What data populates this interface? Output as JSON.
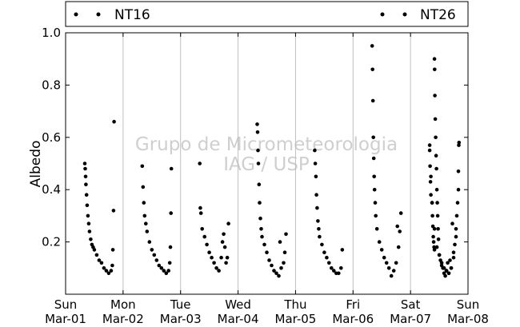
{
  "chart_data": {
    "type": "scatter",
    "ylabel": "Albedo",
    "xlabel": "",
    "ylim": [
      0.0,
      1.0
    ],
    "y_ticks": [
      "0.2",
      "0.4",
      "0.6",
      "0.8",
      "1.0"
    ],
    "x_range": [
      "2015-03-01",
      "2015-03-08"
    ],
    "x_ticks": [
      {
        "date": "2015-03-01",
        "day": "Sun",
        "label": "Mar-01"
      },
      {
        "date": "2015-03-02",
        "day": "Mon",
        "label": "Mar-02"
      },
      {
        "date": "2015-03-03",
        "day": "Tue",
        "label": "Mar-03"
      },
      {
        "date": "2015-03-04",
        "day": "Wed",
        "label": "Mar-04"
      },
      {
        "date": "2015-03-05",
        "day": "Thu",
        "label": "Mar-05"
      },
      {
        "date": "2015-03-06",
        "day": "Fri",
        "label": "Mar-06"
      },
      {
        "date": "2015-03-07",
        "day": "Sat",
        "label": "Mar-07"
      },
      {
        "date": "2015-03-08",
        "day": "Sun",
        "label": "Mar-08"
      }
    ],
    "grid": "vertical",
    "legend_position": "top",
    "watermark": [
      "Grupo de Micrometeorologia",
      "IAG / USP"
    ],
    "series": [
      {
        "name": "NT16",
        "color": "#000000",
        "points": [
          [
            "2015-03-01 08:00",
            0.5
          ],
          [
            "2015-03-01 08:10",
            0.48
          ],
          [
            "2015-03-01 08:20",
            0.45
          ],
          [
            "2015-03-01 08:30",
            0.42
          ],
          [
            "2015-03-01 08:45",
            0.38
          ],
          [
            "2015-03-01 09:00",
            0.34
          ],
          [
            "2015-03-01 09:20",
            0.3
          ],
          [
            "2015-03-01 09:40",
            0.27
          ],
          [
            "2015-03-01 10:00",
            0.24
          ],
          [
            "2015-03-01 10:30",
            0.21
          ],
          [
            "2015-03-01 11:00",
            0.19
          ],
          [
            "2015-03-01 11:30",
            0.18
          ],
          [
            "2015-03-01 12:00",
            0.17
          ],
          [
            "2015-03-01 13:00",
            0.15
          ],
          [
            "2015-03-01 14:00",
            0.13
          ],
          [
            "2015-03-01 15:00",
            0.12
          ],
          [
            "2015-03-01 16:00",
            0.1
          ],
          [
            "2015-03-01 17:00",
            0.09
          ],
          [
            "2015-03-01 18:00",
            0.08
          ],
          [
            "2015-03-01 19:00",
            0.09
          ],
          [
            "2015-03-01 19:30",
            0.11
          ],
          [
            "2015-03-01 19:45",
            0.17
          ],
          [
            "2015-03-01 20:00",
            0.32
          ],
          [
            "2015-03-01 20:15",
            0.66
          ],
          [
            "2015-03-02 08:00",
            0.49
          ],
          [
            "2015-03-02 08:20",
            0.41
          ],
          [
            "2015-03-02 08:40",
            0.35
          ],
          [
            "2015-03-02 09:00",
            0.3
          ],
          [
            "2015-03-02 09:30",
            0.27
          ],
          [
            "2015-03-02 10:00",
            0.24
          ],
          [
            "2015-03-02 11:00",
            0.2
          ],
          [
            "2015-03-02 12:00",
            0.17
          ],
          [
            "2015-03-02 13:00",
            0.15
          ],
          [
            "2015-03-02 14:00",
            0.13
          ],
          [
            "2015-03-02 15:00",
            0.11
          ],
          [
            "2015-03-02 16:00",
            0.1
          ],
          [
            "2015-03-02 17:00",
            0.09
          ],
          [
            "2015-03-02 18:00",
            0.08
          ],
          [
            "2015-03-02 19:00",
            0.09
          ],
          [
            "2015-03-02 19:30",
            0.12
          ],
          [
            "2015-03-02 19:45",
            0.18
          ],
          [
            "2015-03-02 20:00",
            0.31
          ],
          [
            "2015-03-02 20:10",
            0.48
          ],
          [
            "2015-03-03 08:00",
            0.5
          ],
          [
            "2015-03-03 08:15",
            0.33
          ],
          [
            "2015-03-03 08:30",
            0.31
          ],
          [
            "2015-03-03 09:00",
            0.25
          ],
          [
            "2015-03-03 10:00",
            0.22
          ],
          [
            "2015-03-03 11:00",
            0.19
          ],
          [
            "2015-03-03 12:00",
            0.16
          ],
          [
            "2015-03-03 13:00",
            0.14
          ],
          [
            "2015-03-03 14:00",
            0.12
          ],
          [
            "2015-03-03 15:00",
            0.1
          ],
          [
            "2015-03-03 16:00",
            0.09
          ],
          [
            "2015-03-03 17:00",
            0.14
          ],
          [
            "2015-03-03 17:30",
            0.2
          ],
          [
            "2015-03-03 18:00",
            0.23
          ],
          [
            "2015-03-03 18:30",
            0.18
          ],
          [
            "2015-03-03 19:00",
            0.12
          ],
          [
            "2015-03-03 19:30",
            0.14
          ],
          [
            "2015-03-03 20:00",
            0.27
          ],
          [
            "2015-03-04 08:00",
            0.65
          ],
          [
            "2015-03-04 08:10",
            0.62
          ],
          [
            "2015-03-04 08:20",
            0.55
          ],
          [
            "2015-03-04 08:30",
            0.5
          ],
          [
            "2015-03-04 08:45",
            0.42
          ],
          [
            "2015-03-04 09:00",
            0.35
          ],
          [
            "2015-03-04 09:20",
            0.29
          ],
          [
            "2015-03-04 09:40",
            0.25
          ],
          [
            "2015-03-04 10:00",
            0.22
          ],
          [
            "2015-03-04 11:00",
            0.19
          ],
          [
            "2015-03-04 12:00",
            0.16
          ],
          [
            "2015-03-04 13:00",
            0.13
          ],
          [
            "2015-03-04 14:00",
            0.11
          ],
          [
            "2015-03-04 15:00",
            0.09
          ],
          [
            "2015-03-04 16:00",
            0.08
          ],
          [
            "2015-03-04 17:00",
            0.07
          ],
          [
            "2015-03-04 17:30",
            0.2
          ],
          [
            "2015-03-04 18:00",
            0.1
          ],
          [
            "2015-03-04 19:00",
            0.12
          ],
          [
            "2015-03-04 19:30",
            0.16
          ],
          [
            "2015-03-04 20:00",
            0.23
          ],
          [
            "2015-03-05 08:00",
            0.55
          ],
          [
            "2015-03-05 08:15",
            0.5
          ],
          [
            "2015-03-05 08:30",
            0.45
          ],
          [
            "2015-03-05 08:45",
            0.38
          ],
          [
            "2015-03-05 09:00",
            0.33
          ],
          [
            "2015-03-05 09:20",
            0.28
          ],
          [
            "2015-03-05 09:40",
            0.25
          ],
          [
            "2015-03-05 10:00",
            0.22
          ],
          [
            "2015-03-05 11:00",
            0.19
          ],
          [
            "2015-03-05 12:00",
            0.16
          ],
          [
            "2015-03-05 13:00",
            0.14
          ],
          [
            "2015-03-05 14:00",
            0.12
          ],
          [
            "2015-03-05 15:00",
            0.1
          ],
          [
            "2015-03-05 16:00",
            0.09
          ],
          [
            "2015-03-05 17:00",
            0.08
          ],
          [
            "2015-03-05 18:00",
            0.08
          ],
          [
            "2015-03-05 19:00",
            0.1
          ],
          [
            "2015-03-05 19:30",
            0.17
          ],
          [
            "2015-03-06 08:00",
            0.95
          ],
          [
            "2015-03-06 08:10",
            0.86
          ],
          [
            "2015-03-06 08:20",
            0.74
          ],
          [
            "2015-03-06 08:30",
            0.6
          ],
          [
            "2015-03-06 08:40",
            0.52
          ],
          [
            "2015-03-06 08:50",
            0.45
          ],
          [
            "2015-03-06 09:00",
            0.4
          ],
          [
            "2015-03-06 09:15",
            0.35
          ],
          [
            "2015-03-06 09:30",
            0.3
          ],
          [
            "2015-03-06 10:00",
            0.25
          ],
          [
            "2015-03-06 11:00",
            0.2
          ],
          [
            "2015-03-06 12:00",
            0.17
          ],
          [
            "2015-03-06 13:00",
            0.14
          ],
          [
            "2015-03-06 14:00",
            0.12
          ],
          [
            "2015-03-06 15:00",
            0.1
          ],
          [
            "2015-03-06 16:00",
            0.07
          ],
          [
            "2015-03-06 17:00",
            0.09
          ],
          [
            "2015-03-06 18:00",
            0.12
          ],
          [
            "2015-03-06 18:30",
            0.26
          ],
          [
            "2015-03-06 19:00",
            0.18
          ],
          [
            "2015-03-06 19:30",
            0.24
          ],
          [
            "2015-03-06 20:00",
            0.31
          ],
          [
            "2015-03-07 08:00",
            0.57
          ],
          [
            "2015-03-07 08:30",
            0.45
          ],
          [
            "2015-03-07 09:00",
            0.35
          ],
          [
            "2015-03-07 10:00",
            0.25
          ],
          [
            "2015-03-07 11:00",
            0.18
          ],
          [
            "2015-03-07 12:00",
            0.15
          ],
          [
            "2015-03-07 13:00",
            0.12
          ],
          [
            "2015-03-07 14:00",
            0.1
          ],
          [
            "2015-03-07 15:00",
            0.09
          ],
          [
            "2015-03-07 16:00",
            0.08
          ],
          [
            "2015-03-07 17:00",
            0.1
          ],
          [
            "2015-03-07 18:00",
            0.16
          ],
          [
            "2015-03-07 19:00",
            0.25
          ],
          [
            "2015-03-07 20:00",
            0.4
          ]
        ]
      },
      {
        "name": "NT26",
        "color": "#000000",
        "points": [
          [
            "2015-03-07 08:00",
            0.55
          ],
          [
            "2015-03-07 08:10",
            0.49
          ],
          [
            "2015-03-07 08:20",
            0.43
          ],
          [
            "2015-03-07 08:30",
            0.38
          ],
          [
            "2015-03-07 09:00",
            0.35
          ],
          [
            "2015-03-07 09:10",
            0.3
          ],
          [
            "2015-03-07 09:20",
            0.26
          ],
          [
            "2015-03-07 09:30",
            0.22
          ],
          [
            "2015-03-07 09:40",
            0.2
          ],
          [
            "2015-03-07 09:50",
            0.18
          ],
          [
            "2015-03-07 10:00",
            0.17
          ],
          [
            "2015-03-07 10:00",
            0.9
          ],
          [
            "2015-03-07 10:05",
            0.86
          ],
          [
            "2015-03-07 10:10",
            0.76
          ],
          [
            "2015-03-07 10:20",
            0.67
          ],
          [
            "2015-03-07 10:30",
            0.6
          ],
          [
            "2015-03-07 10:40",
            0.53
          ],
          [
            "2015-03-07 10:50",
            0.48
          ],
          [
            "2015-03-07 11:00",
            0.4
          ],
          [
            "2015-03-07 11:10",
            0.35
          ],
          [
            "2015-03-07 11:20",
            0.3
          ],
          [
            "2015-03-07 11:30",
            0.25
          ],
          [
            "2015-03-07 11:40",
            0.21
          ],
          [
            "2015-03-07 12:00",
            0.15
          ],
          [
            "2015-03-07 12:30",
            0.13
          ],
          [
            "2015-03-07 13:00",
            0.11
          ],
          [
            "2015-03-07 13:30",
            0.1
          ],
          [
            "2015-03-07 14:00",
            0.08
          ],
          [
            "2015-03-07 14:30",
            0.07
          ],
          [
            "2015-03-07 15:00",
            0.09
          ],
          [
            "2015-03-07 15:30",
            0.12
          ],
          [
            "2015-03-07 16:00",
            0.08
          ],
          [
            "2015-03-07 16:30",
            0.13
          ],
          [
            "2015-03-07 17:00",
            0.1
          ],
          [
            "2015-03-07 17:30",
            0.27
          ],
          [
            "2015-03-07 18:00",
            0.14
          ],
          [
            "2015-03-07 18:30",
            0.19
          ],
          [
            "2015-03-07 19:00",
            0.22
          ],
          [
            "2015-03-07 19:20",
            0.3
          ],
          [
            "2015-03-07 19:40",
            0.35
          ],
          [
            "2015-03-07 20:00",
            0.47
          ],
          [
            "2015-03-07 20:10",
            0.57
          ],
          [
            "2015-03-07 20:15",
            0.58
          ]
        ]
      }
    ]
  }
}
